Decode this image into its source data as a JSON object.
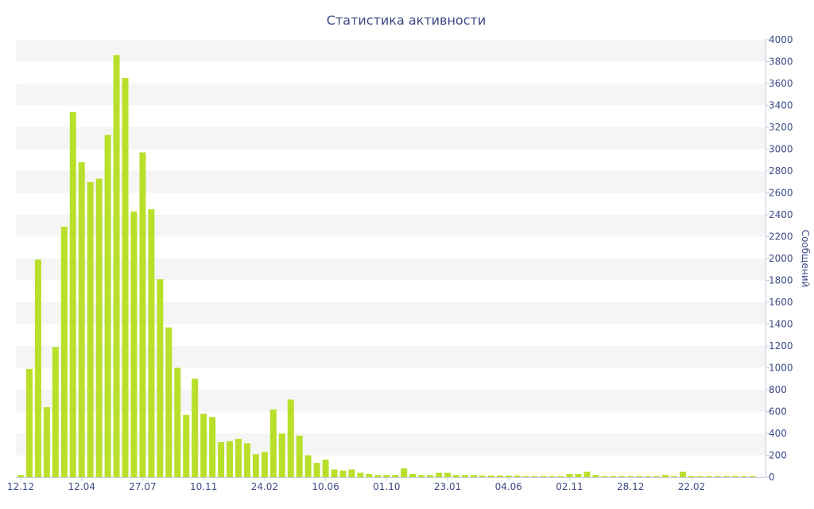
{
  "chart_data": {
    "type": "bar",
    "title": "Статистика активности",
    "ylabel": "Сообщений",
    "xlabel": "",
    "ylim": [
      0,
      4000
    ],
    "yticks": [
      0,
      200,
      400,
      600,
      800,
      1000,
      1200,
      1400,
      1600,
      1800,
      2000,
      2200,
      2400,
      2600,
      2800,
      3000,
      3200,
      3400,
      3600,
      3800,
      4000
    ],
    "y_axis_position": "right",
    "grid": "alternating horizontal bands",
    "legend": "none",
    "bar_color": "#b8e02a",
    "xtick_labels": [
      {
        "index": 0,
        "label": "12.12"
      },
      {
        "index": 7,
        "label": "12.04"
      },
      {
        "index": 14,
        "label": "27.07"
      },
      {
        "index": 21,
        "label": "10.11"
      },
      {
        "index": 28,
        "label": "24.02"
      },
      {
        "index": 35,
        "label": "10.06"
      },
      {
        "index": 42,
        "label": "01.10"
      },
      {
        "index": 49,
        "label": "23.01"
      },
      {
        "index": 56,
        "label": "04.06"
      },
      {
        "index": 63,
        "label": "02.11"
      },
      {
        "index": 70,
        "label": "28.12"
      },
      {
        "index": 77,
        "label": "22.02"
      }
    ],
    "values": [
      20,
      990,
      1990,
      640,
      1190,
      2290,
      3340,
      2880,
      2700,
      2730,
      3130,
      3860,
      3650,
      2430,
      2970,
      2450,
      1810,
      1370,
      1000,
      570,
      900,
      580,
      550,
      320,
      330,
      350,
      310,
      210,
      230,
      620,
      400,
      710,
      380,
      200,
      130,
      160,
      70,
      60,
      70,
      40,
      30,
      20,
      20,
      20,
      80,
      30,
      20,
      20,
      40,
      40,
      20,
      20,
      20,
      15,
      15,
      15,
      15,
      15,
      10,
      10,
      10,
      10,
      10,
      30,
      30,
      50,
      20,
      10,
      10,
      10,
      10,
      10,
      10,
      10,
      20,
      10,
      50,
      10,
      10,
      10,
      10,
      10,
      10,
      10,
      10
    ]
  }
}
